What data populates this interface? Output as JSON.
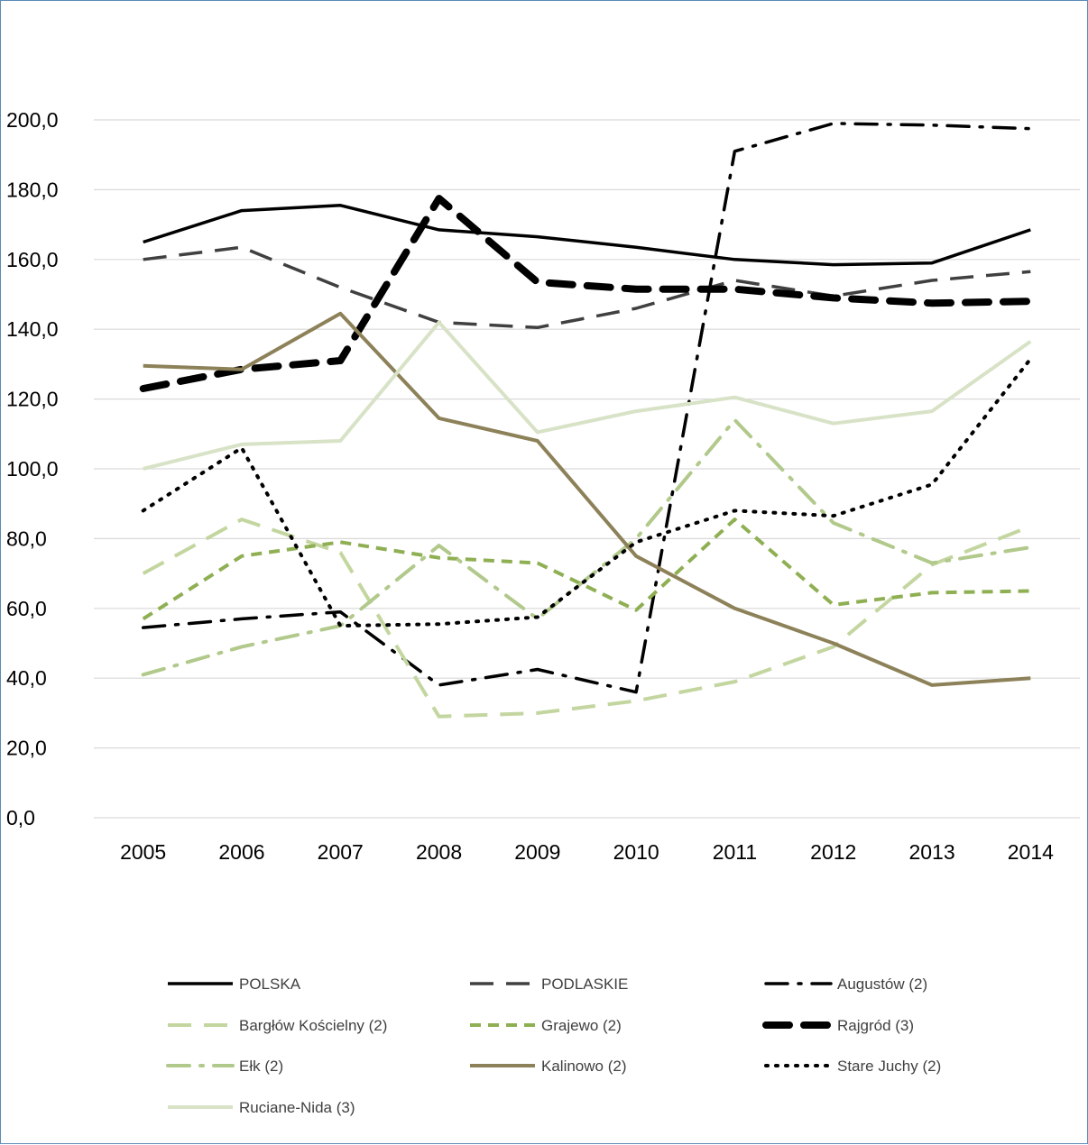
{
  "chart_data": {
    "type": "line",
    "categories": [
      "2005",
      "2006",
      "2007",
      "2008",
      "2009",
      "2010",
      "2011",
      "2012",
      "2013",
      "2014"
    ],
    "y_ticks": [
      "0,0",
      "20,0",
      "40,0",
      "60,0",
      "80,0",
      "100,0",
      "120,0",
      "140,0",
      "160,0",
      "180,0",
      "200,0"
    ],
    "ylim": [
      0,
      200
    ],
    "grid": true,
    "legend_position": "bottom",
    "series": [
      {
        "name": "POLSKA",
        "values": [
          165,
          174,
          175.5,
          168.5,
          166.5,
          163.5,
          160,
          158.5,
          159,
          168.5
        ],
        "color": "#000000",
        "dash": "solid",
        "width": 3.5
      },
      {
        "name": "PODLASKIE",
        "values": [
          160,
          163.5,
          152,
          142,
          140.5,
          146,
          154,
          149.5,
          154,
          156.5
        ],
        "color": "#404040",
        "dash": "longdash",
        "width": 3.5
      },
      {
        "name": "Augustów (2)",
        "values": [
          54.5,
          57,
          59,
          38,
          42.5,
          36,
          191,
          199,
          198.5,
          197.5
        ],
        "color": "#000000",
        "dash": "dashdot",
        "width": 3.5
      },
      {
        "name": "Bargłów Kościelny (2)",
        "values": [
          70,
          85.5,
          76,
          29,
          30,
          33.5,
          39,
          49,
          72.5,
          83.5
        ],
        "color": "#c4d6a0",
        "dash": "longdash",
        "width": 4
      },
      {
        "name": "Grajewo (2)",
        "values": [
          57,
          75,
          79,
          74.5,
          73,
          59.5,
          85.5,
          61,
          64.5,
          65
        ],
        "color": "#8faf53",
        "dash": "dash",
        "width": 4
      },
      {
        "name": "Rajgród (3)",
        "values": [
          123,
          128.5,
          131,
          177.5,
          153.5,
          151.5,
          151.5,
          149,
          147.5,
          148
        ],
        "color": "#000000",
        "dash": "heavydash",
        "width": 8
      },
      {
        "name": "Ełk (2)",
        "values": [
          41,
          49,
          55,
          78,
          57,
          80,
          114,
          84.5,
          73,
          77.5
        ],
        "color": "#b1c98b",
        "dash": "dashdot",
        "width": 4
      },
      {
        "name": "Kalinowo (2)",
        "values": [
          129.5,
          128.5,
          144.5,
          114.5,
          108,
          75,
          60,
          50,
          38,
          40
        ],
        "color": "#8c8158",
        "dash": "solid",
        "width": 4
      },
      {
        "name": "Stare Juchy (2)",
        "values": [
          88,
          106,
          55,
          55.5,
          57.5,
          79,
          88,
          86.5,
          95.5,
          131.5
        ],
        "color": "#000000",
        "dash": "dot",
        "width": 4
      },
      {
        "name": "Ruciane-Nida (3)",
        "values": [
          100,
          107,
          108,
          142,
          110.5,
          116.5,
          120.5,
          113,
          116.5,
          136.5
        ],
        "color": "#d8e2c6",
        "dash": "solid",
        "width": 4
      }
    ]
  }
}
